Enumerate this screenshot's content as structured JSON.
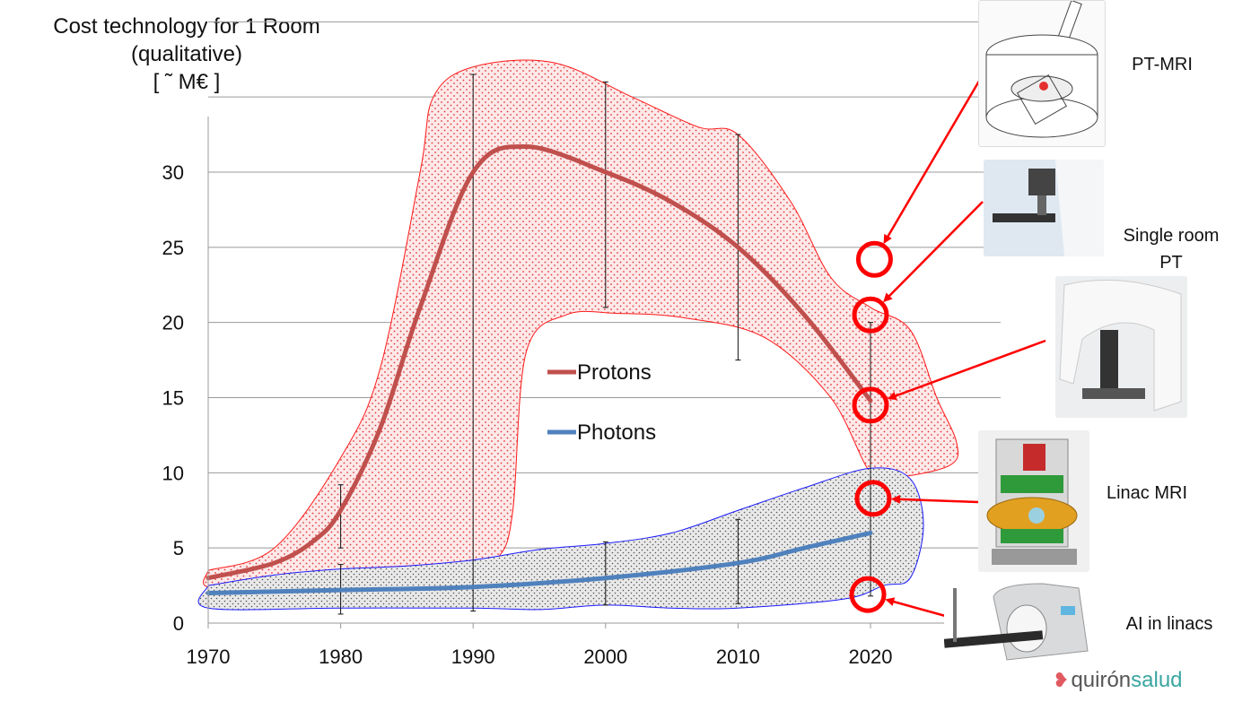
{
  "y_axis_title": [
    "Cost technology for 1 Room",
    "(qualitative)",
    "[ ˜ M€ ]"
  ],
  "chart_data": {
    "type": "line",
    "x_ticks": [
      "1970",
      "1980",
      "1990",
      "2000",
      "2010",
      "2020"
    ],
    "y_ticks": [
      "0",
      "5",
      "10",
      "15",
      "20",
      "25",
      "30"
    ],
    "xlim": [
      1970,
      2026
    ],
    "ylim": [
      0,
      35
    ],
    "grid": true,
    "legend": {
      "placement": "center",
      "entries": [
        "Protons",
        "Photons"
      ]
    },
    "series": [
      {
        "name": "Protons",
        "color": "#c0504d",
        "x": [
          1970,
          1975,
          1978,
          1980,
          1983,
          1986,
          1990,
          1994,
          2000,
          2005,
          2010,
          2015,
          2020
        ],
        "y": [
          3,
          4,
          5.5,
          7.5,
          13,
          21,
          30,
          31.7,
          30,
          28,
          25,
          20.5,
          14.8
        ]
      },
      {
        "name": "Photons",
        "color": "#4f81bd",
        "x": [
          1970,
          1980,
          1990,
          2000,
          2010,
          2015,
          2020
        ],
        "y": [
          2,
          2.2,
          2.4,
          3,
          4,
          5,
          6
        ]
      }
    ],
    "error_bars": [
      {
        "x": 1980,
        "low": 5,
        "high": 9.2
      },
      {
        "x": 1980,
        "low": 0.6,
        "high": 3.9
      },
      {
        "x": 1990,
        "low": 0.8,
        "high": 36.5
      },
      {
        "x": 2000,
        "low": 21,
        "high": 36
      },
      {
        "x": 2000,
        "low": 1.2,
        "high": 5.4
      },
      {
        "x": 2010,
        "low": 17.5,
        "high": 32.5
      },
      {
        "x": 2010,
        "low": 1.3,
        "high": 6.9
      },
      {
        "x": 2020,
        "low": 1.8,
        "high": 20
      }
    ],
    "proton_band": {
      "upper": [
        [
          1970,
          3.5
        ],
        [
          1975,
          5
        ],
        [
          1980,
          11
        ],
        [
          1983,
          17
        ],
        [
          1986,
          30
        ],
        [
          1987,
          35
        ],
        [
          1990,
          37
        ],
        [
          1996,
          37.3
        ],
        [
          2002,
          35
        ],
        [
          2007,
          33
        ],
        [
          2010,
          32.5
        ],
        [
          2014,
          28
        ],
        [
          2017,
          23
        ],
        [
          2020,
          21
        ],
        [
          2023,
          19.5
        ],
        [
          2025,
          15
        ],
        [
          2026.5,
          12
        ],
        [
          2026,
          10.5
        ],
        [
          2022,
          9.7
        ],
        [
          2020,
          10
        ]
      ],
      "lower": [
        [
          2017,
          15
        ],
        [
          2012,
          19
        ],
        [
          2006,
          20.3
        ],
        [
          2001,
          20.6
        ],
        [
          1997,
          20.5
        ],
        [
          1994,
          18
        ],
        [
          1993,
          7.5
        ],
        [
          1992,
          4.5
        ],
        [
          1990,
          4
        ],
        [
          1985,
          3.8
        ],
        [
          1980,
          3.5
        ],
        [
          1975,
          2.7
        ],
        [
          1970,
          2.4
        ]
      ]
    },
    "photon_band": {
      "outline": [
        [
          1970,
          2.5
        ],
        [
          1975,
          3.2
        ],
        [
          1980,
          3.6
        ],
        [
          1985,
          3.8
        ],
        [
          1990,
          4.2
        ],
        [
          1995,
          4.9
        ],
        [
          2000,
          5.3
        ],
        [
          2005,
          6
        ],
        [
          2010,
          7.5
        ],
        [
          2015,
          9
        ],
        [
          2020,
          10.3
        ],
        [
          2023,
          9.6
        ],
        [
          2024,
          6.5
        ],
        [
          2023,
          3
        ],
        [
          2021,
          2.5
        ],
        [
          2018,
          1.6
        ],
        [
          2010,
          1
        ],
        [
          2005,
          1
        ],
        [
          2000,
          1.2
        ],
        [
          1995,
          0.9
        ],
        [
          1990,
          1
        ],
        [
          1980,
          1
        ],
        [
          1970,
          1
        ]
      ]
    },
    "markers": [
      {
        "x": 2020.3,
        "y": 24.2
      },
      {
        "x": 2020,
        "y": 20.5
      },
      {
        "x": 2020,
        "y": 14.5
      },
      {
        "x": 2020.2,
        "y": 8.3
      },
      {
        "x": 2019.8,
        "y": 1.9
      }
    ]
  },
  "annotations": [
    {
      "label": "PT-MRI",
      "icon": "pt-mri-drawing"
    },
    {
      "label": "Single room\nPT",
      "icon": "single-room-pt-photo"
    },
    {
      "label": "",
      "icon": "gantry-photo"
    },
    {
      "label": "Linac MRI",
      "icon": "linac-mri-cutaway"
    },
    {
      "label": "AI in linacs",
      "icon": "linac-machine-photo"
    }
  ],
  "logo": {
    "text_main": "quirón",
    "text_accent": "salud"
  }
}
